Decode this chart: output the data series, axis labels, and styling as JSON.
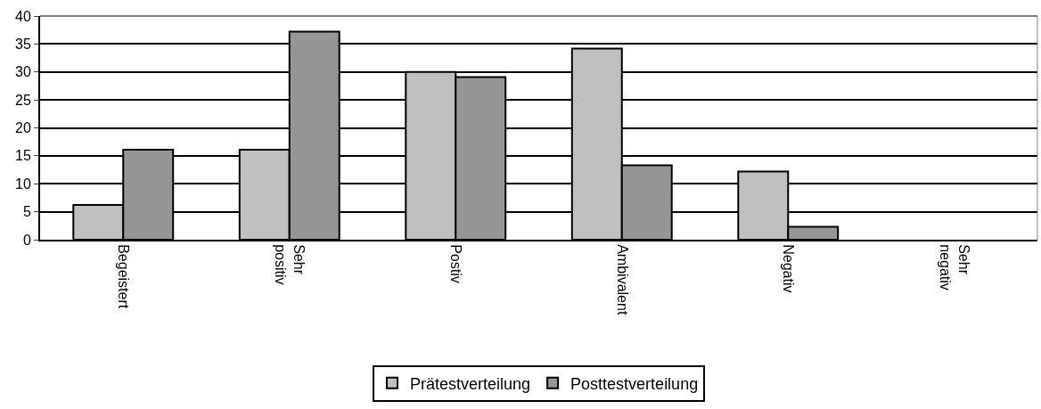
{
  "chart_data": {
    "type": "bar",
    "categories": [
      "Begeistert",
      "Sehr\npositiv",
      "Postiv",
      "Ambivalent",
      "Negativ",
      "Sehr\nnegativ"
    ],
    "series": [
      {
        "name": "Prätestverteilung",
        "color": "#c0c0c0",
        "values": [
          6.2,
          16.1,
          30.0,
          34.2,
          12.2,
          0
        ]
      },
      {
        "name": "Posttestverteilung",
        "color": "#969696",
        "values": [
          16.1,
          37.2,
          29.1,
          13.3,
          2.3,
          0
        ]
      }
    ],
    "ylim": [
      0,
      40
    ],
    "yticks": [
      0,
      5,
      10,
      15,
      20,
      25,
      30,
      35,
      40
    ],
    "grid": "y",
    "legend": "bottom"
  }
}
